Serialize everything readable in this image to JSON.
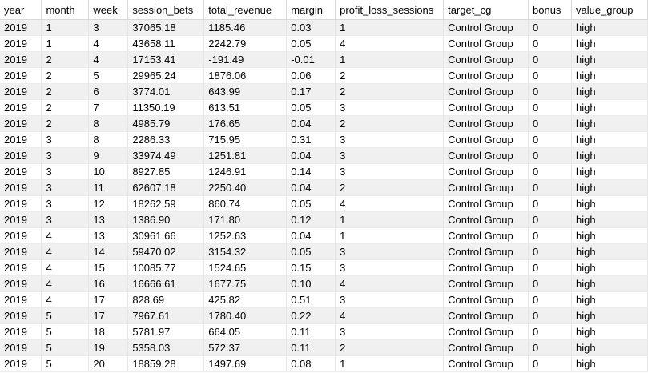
{
  "grid": {
    "columns": [
      "year",
      "month",
      "week",
      "session_bets",
      "total_revenue",
      "margin",
      "profit_loss_sessions",
      "target_cg",
      "bonus",
      "value_group"
    ],
    "rows": [
      [
        "2019",
        "1",
        "3",
        "37065.18",
        "1185.46",
        "0.03",
        "1",
        "Control Group",
        "0",
        "high"
      ],
      [
        "2019",
        "1",
        "4",
        "43658.11",
        "2242.79",
        "0.05",
        "4",
        "Control Group",
        "0",
        "high"
      ],
      [
        "2019",
        "2",
        "4",
        "17153.41",
        "-191.49",
        "-0.01",
        "1",
        "Control Group",
        "0",
        "high"
      ],
      [
        "2019",
        "2",
        "5",
        "29965.24",
        "1876.06",
        "0.06",
        "2",
        "Control Group",
        "0",
        "high"
      ],
      [
        "2019",
        "2",
        "6",
        "3774.01",
        "643.99",
        "0.17",
        "2",
        "Control Group",
        "0",
        "high"
      ],
      [
        "2019",
        "2",
        "7",
        "11350.19",
        "613.51",
        "0.05",
        "3",
        "Control Group",
        "0",
        "high"
      ],
      [
        "2019",
        "2",
        "8",
        "4985.79",
        "176.65",
        "0.04",
        "2",
        "Control Group",
        "0",
        "high"
      ],
      [
        "2019",
        "3",
        "8",
        "2286.33",
        "715.95",
        "0.31",
        "3",
        "Control Group",
        "0",
        "high"
      ],
      [
        "2019",
        "3",
        "9",
        "33974.49",
        "1251.81",
        "0.04",
        "3",
        "Control Group",
        "0",
        "high"
      ],
      [
        "2019",
        "3",
        "10",
        "8927.85",
        "1246.91",
        "0.14",
        "3",
        "Control Group",
        "0",
        "high"
      ],
      [
        "2019",
        "3",
        "11",
        "62607.18",
        "2250.40",
        "0.04",
        "2",
        "Control Group",
        "0",
        "high"
      ],
      [
        "2019",
        "3",
        "12",
        "18262.59",
        "860.74",
        "0.05",
        "4",
        "Control Group",
        "0",
        "high"
      ],
      [
        "2019",
        "3",
        "13",
        "1386.90",
        "171.80",
        "0.12",
        "1",
        "Control Group",
        "0",
        "high"
      ],
      [
        "2019",
        "4",
        "13",
        "30961.66",
        "1252.63",
        "0.04",
        "1",
        "Control Group",
        "0",
        "high"
      ],
      [
        "2019",
        "4",
        "14",
        "59470.02",
        "3154.32",
        "0.05",
        "3",
        "Control Group",
        "0",
        "high"
      ],
      [
        "2019",
        "4",
        "15",
        "10085.77",
        "1524.65",
        "0.15",
        "3",
        "Control Group",
        "0",
        "high"
      ],
      [
        "2019",
        "4",
        "16",
        "16666.61",
        "1677.75",
        "0.10",
        "4",
        "Control Group",
        "0",
        "high"
      ],
      [
        "2019",
        "4",
        "17",
        "828.69",
        "425.82",
        "0.51",
        "3",
        "Control Group",
        "0",
        "high"
      ],
      [
        "2019",
        "5",
        "17",
        "7967.61",
        "1780.40",
        "0.22",
        "4",
        "Control Group",
        "0",
        "high"
      ],
      [
        "2019",
        "5",
        "18",
        "5781.97",
        "664.05",
        "0.11",
        "3",
        "Control Group",
        "0",
        "high"
      ],
      [
        "2019",
        "5",
        "19",
        "5358.03",
        "572.37",
        "0.11",
        "2",
        "Control Group",
        "0",
        "high"
      ],
      [
        "2019",
        "5",
        "20",
        "18859.28",
        "1497.69",
        "0.08",
        "1",
        "Control Group",
        "0",
        "high"
      ]
    ]
  }
}
